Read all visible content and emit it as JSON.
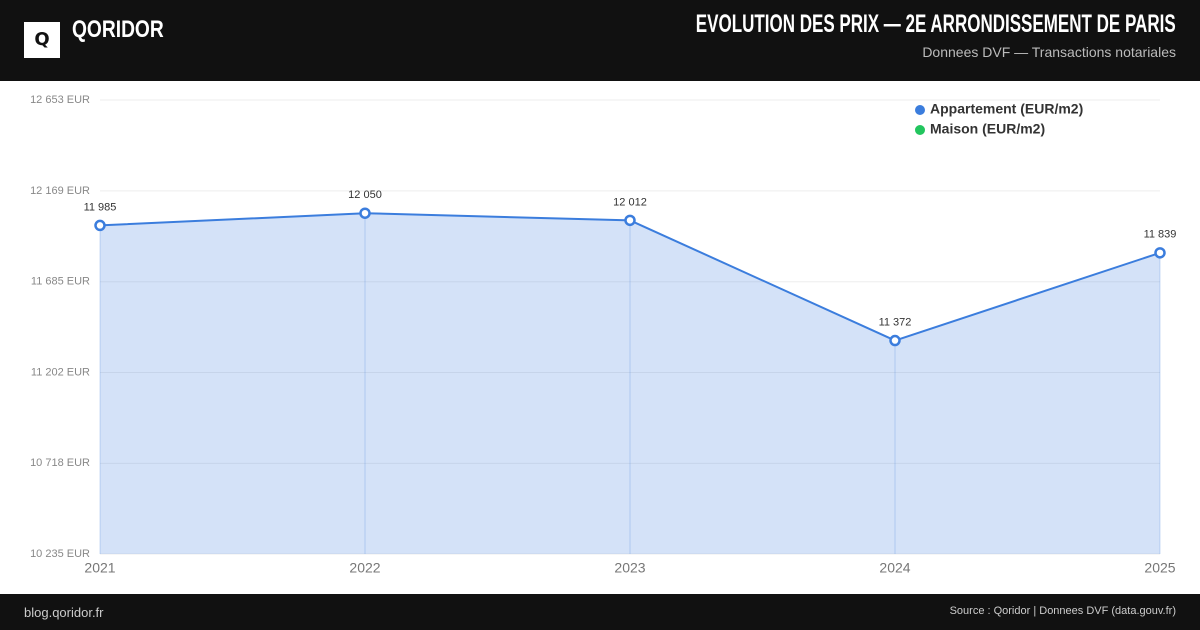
{
  "header": {
    "logo": "Q",
    "brand": "QORIDOR"
  },
  "footer": {
    "left": "blog.qoridor.fr",
    "right": "Source : Qoridor | Donnees DVF (data.gouv.fr)"
  },
  "chart_data": {
    "type": "line",
    "title": "EVOLUTION DES PRIX — 2E ARRONDISSEMENT DE PARIS",
    "subtitle": "Donnees DVF — Transactions notariales",
    "categories": [
      "2021",
      "2022",
      "2023",
      "2024",
      "2025"
    ],
    "series": [
      {
        "name": "Appartement (EUR/m2)",
        "color": "#3b7ddd",
        "values": [
          11985,
          12050,
          12012,
          11372,
          11839
        ],
        "value_labels": [
          "11 985",
          "12 050",
          "12 012",
          "11 372",
          "11 839"
        ]
      },
      {
        "name": "Maison (EUR/m2)",
        "color": "#22c55e",
        "values": [
          null,
          null,
          null,
          null,
          null
        ]
      }
    ],
    "ylim": [
      10235,
      12653
    ],
    "yticks": [
      {
        "value": 12653,
        "label": "12 653 EUR"
      },
      {
        "value": 12169,
        "label": "12 169 EUR"
      },
      {
        "value": 11685,
        "label": "11 685 EUR"
      },
      {
        "value": 11202,
        "label": "11 202 EUR"
      },
      {
        "value": 10718,
        "label": "10 718 EUR"
      },
      {
        "value": 10235,
        "label": "10 235 EUR"
      }
    ],
    "grid": true,
    "legend": "top-right"
  }
}
